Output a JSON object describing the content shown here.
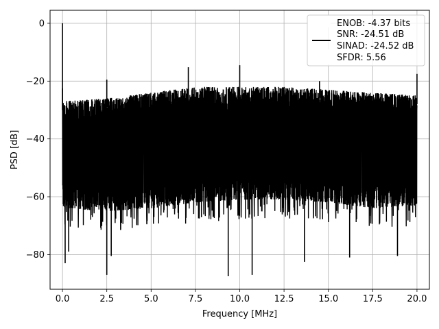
{
  "chart_data": {
    "type": "line",
    "title": "",
    "xlabel": "Frequency [MHz]",
    "ylabel": "PSD [dB]",
    "xlim": [
      -0.7,
      20.7
    ],
    "ylim": [
      -92,
      4.5
    ],
    "xticks": [
      0.0,
      2.5,
      5.0,
      7.5,
      10.0,
      12.5,
      15.0,
      17.5,
      20.0
    ],
    "xtick_labels": [
      "0.0",
      "2.5",
      "5.0",
      "7.5",
      "10.0",
      "12.5",
      "15.0",
      "17.5",
      "20.0"
    ],
    "yticks": [
      0,
      -20,
      -40,
      -60,
      -80
    ],
    "ytick_labels": [
      "0",
      "−20",
      "−40",
      "−60",
      "−80"
    ],
    "grid": true,
    "legend_position": "top-right",
    "legend_lines": [
      "ENOB: -4.37 bits",
      "SNR: -24.51 dB",
      "SINAD: -24.52 dB",
      "SFDR: 5.56"
    ],
    "series": [
      {
        "color": "#000000",
        "noise_band": {
          "x": [
            0.0,
            2.5,
            5.0,
            7.5,
            10.0,
            12.5,
            15.0,
            17.5,
            20.0
          ],
          "upper": [
            -27,
            -26,
            -24,
            -22,
            -22,
            -22,
            -23,
            -24,
            -25
          ],
          "lower": [
            -64,
            -65,
            -64,
            -62,
            -61,
            -61,
            -62,
            -64,
            -63
          ]
        },
        "peaks": [
          {
            "x": 0.0,
            "y": 0.0
          },
          {
            "x": 0.0,
            "y": -22.5
          },
          {
            "x": 2.5,
            "y": -19.5
          },
          {
            "x": 7.1,
            "y": -15.2
          },
          {
            "x": 10.0,
            "y": -14.5
          },
          {
            "x": 14.5,
            "y": -20.0
          },
          {
            "x": 20.0,
            "y": -17.5
          }
        ],
        "dips": [
          {
            "x": 0.15,
            "y": -83.0
          },
          {
            "x": 0.35,
            "y": -79.0
          },
          {
            "x": 2.5,
            "y": -87.0
          },
          {
            "x": 2.75,
            "y": -80.5
          },
          {
            "x": 9.35,
            "y": -87.5
          },
          {
            "x": 10.7,
            "y": -87.0
          },
          {
            "x": 13.65,
            "y": -82.5
          },
          {
            "x": 16.2,
            "y": -81.0
          },
          {
            "x": 18.9,
            "y": -80.5
          }
        ]
      }
    ]
  }
}
